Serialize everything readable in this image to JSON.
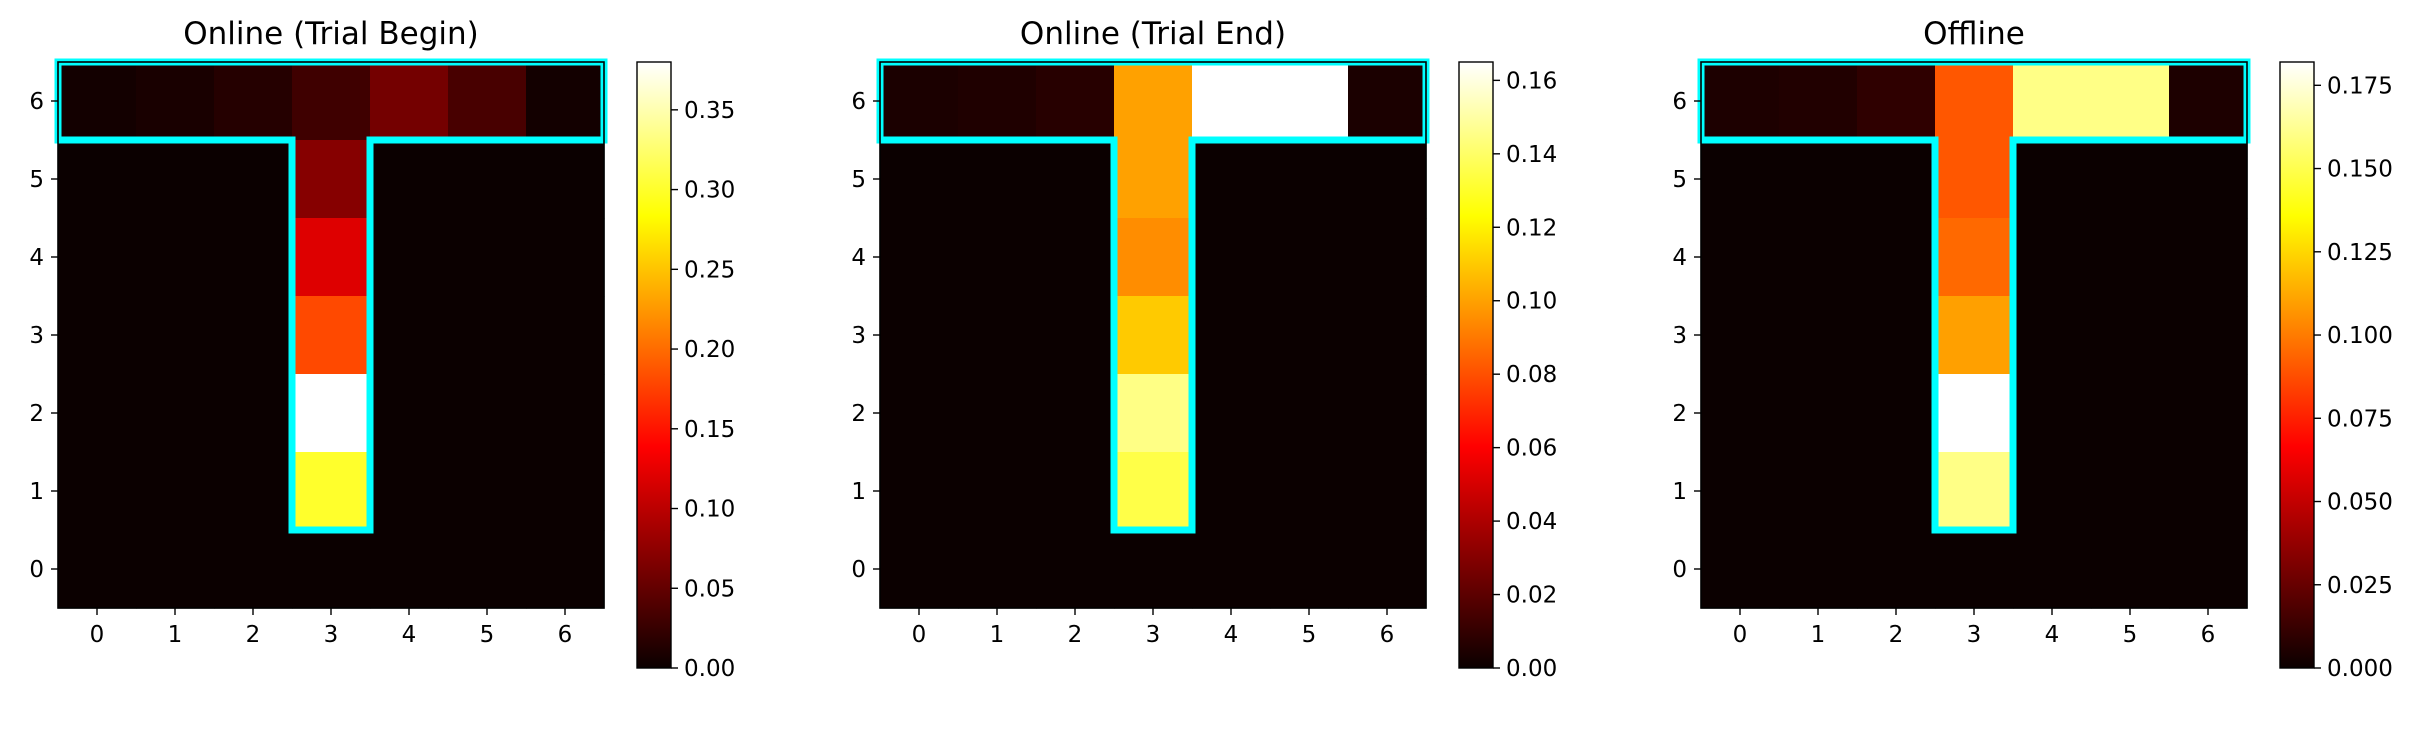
{
  "chart_data": [
    {
      "type": "heatmap",
      "title": "Online (Trial Begin)",
      "x": [
        0,
        1,
        2,
        3,
        4,
        5,
        6
      ],
      "y": [
        0,
        1,
        2,
        3,
        4,
        5,
        6
      ],
      "xlabel": "",
      "ylabel": "",
      "colormap": "hot",
      "vmin": 0,
      "vmax": 0.38,
      "colorbar_ticks": [
        "0.00",
        "0.05",
        "0.10",
        "0.15",
        "0.20",
        "0.25",
        "0.30",
        "0.35"
      ],
      "values": [
        [
          0.005,
          0.008,
          0.015,
          0.03,
          0.06,
          0.035,
          0.005
        ],
        [
          0,
          0,
          0,
          0.07,
          0,
          0,
          0
        ],
        [
          0,
          0,
          0,
          0.12,
          0,
          0,
          0
        ],
        [
          0,
          0,
          0,
          0.18,
          0,
          0,
          0
        ],
        [
          0,
          0,
          0,
          0.38,
          0,
          0,
          0
        ],
        [
          0,
          0,
          0,
          0.3,
          0,
          0,
          0
        ],
        [
          0,
          0,
          0,
          0,
          0,
          0,
          0
        ]
      ]
    },
    {
      "type": "heatmap",
      "title": "Online (Trial End)",
      "x": [
        0,
        1,
        2,
        3,
        4,
        5,
        6
      ],
      "y": [
        0,
        1,
        2,
        3,
        4,
        5,
        6
      ],
      "xlabel": "",
      "ylabel": "",
      "colormap": "hot",
      "vmin": 0,
      "vmax": 0.165,
      "colorbar_ticks": [
        "0.00",
        "0.02",
        "0.04",
        "0.06",
        "0.08",
        "0.10",
        "0.12",
        "0.14",
        "0.16"
      ],
      "values": [
        [
          0.004,
          0.005,
          0.007,
          0.1,
          0.165,
          0.165,
          0.004
        ],
        [
          0,
          0,
          0,
          0.1,
          0,
          0,
          0
        ],
        [
          0,
          0,
          0,
          0.095,
          0,
          0,
          0
        ],
        [
          0,
          0,
          0,
          0.11,
          0,
          0,
          0
        ],
        [
          0,
          0,
          0,
          0.145,
          0,
          0,
          0
        ],
        [
          0,
          0,
          0,
          0.135,
          0,
          0,
          0
        ],
        [
          0,
          0,
          0,
          0,
          0,
          0,
          0
        ]
      ]
    },
    {
      "type": "heatmap",
      "title": "Offline",
      "x": [
        0,
        1,
        2,
        3,
        4,
        5,
        6
      ],
      "y": [
        0,
        1,
        2,
        3,
        4,
        5,
        6
      ],
      "xlabel": "",
      "ylabel": "",
      "colormap": "hot",
      "vmin": 0,
      "vmax": 0.182,
      "colorbar_ticks": [
        "0.000",
        "0.025",
        "0.050",
        "0.075",
        "0.100",
        "0.125",
        "0.150",
        "0.175"
      ],
      "values": [
        [
          0.005,
          0.006,
          0.01,
          0.09,
          0.16,
          0.16,
          0.005
        ],
        [
          0,
          0,
          0,
          0.09,
          0,
          0,
          0
        ],
        [
          0,
          0,
          0,
          0.095,
          0,
          0,
          0
        ],
        [
          0,
          0,
          0,
          0.11,
          0,
          0,
          0
        ],
        [
          0,
          0,
          0,
          0.182,
          0,
          0,
          0
        ],
        [
          0,
          0,
          0,
          0.16,
          0,
          0,
          0
        ],
        [
          0,
          0,
          0,
          0,
          0,
          0,
          0
        ]
      ]
    }
  ],
  "colors": {
    "outline": "#00ffff",
    "axis": "#000000",
    "background": "#ffffff"
  }
}
